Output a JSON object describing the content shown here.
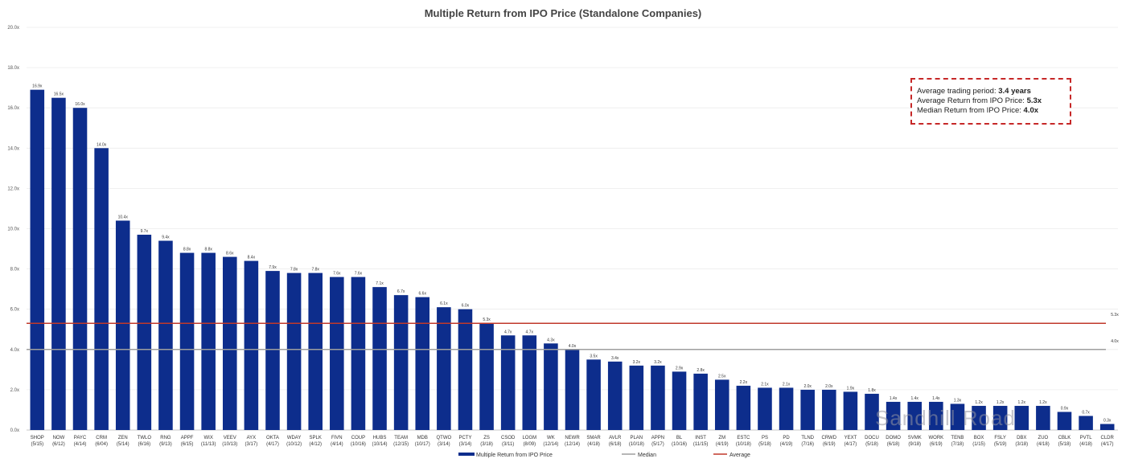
{
  "chart_data": {
    "type": "bar",
    "title": "Multiple Return from IPO Price (Standalone Companies)",
    "ylim": [
      0,
      20
    ],
    "yticks": [
      "0.0x",
      "2.0x",
      "4.0x",
      "6.0x",
      "8.0x",
      "10.0x",
      "12.0x",
      "14.0x",
      "16.0x",
      "18.0x",
      "20.0x"
    ],
    "categories": [
      {
        "ticker": "SHOP",
        "date": "(5/15)",
        "value": 16.9,
        "label": "16.9x"
      },
      {
        "ticker": "NOW",
        "date": "(6/12)",
        "value": 16.5,
        "label": "16.5x"
      },
      {
        "ticker": "PAYC",
        "date": "(4/14)",
        "value": 16.0,
        "label": "16.0x"
      },
      {
        "ticker": "CRM",
        "date": "(6/04)",
        "value": 14.0,
        "label": "14.0x"
      },
      {
        "ticker": "ZEN",
        "date": "(5/14)",
        "value": 10.4,
        "label": "10.4x"
      },
      {
        "ticker": "TWLO",
        "date": "(6/16)",
        "value": 9.7,
        "label": "9.7x"
      },
      {
        "ticker": "RNG",
        "date": "(9/13)",
        "value": 9.4,
        "label": "9.4x"
      },
      {
        "ticker": "APPF",
        "date": "(6/15)",
        "value": 8.8,
        "label": "8.8x"
      },
      {
        "ticker": "WIX",
        "date": "(11/13)",
        "value": 8.8,
        "label": "8.8x"
      },
      {
        "ticker": "VEEV",
        "date": "(10/13)",
        "value": 8.6,
        "label": "8.6x"
      },
      {
        "ticker": "AYX",
        "date": "(3/17)",
        "value": 8.4,
        "label": "8.4x"
      },
      {
        "ticker": "OKTA",
        "date": "(4/17)",
        "value": 7.9,
        "label": "7.9x"
      },
      {
        "ticker": "WDAY",
        "date": "(10/12)",
        "value": 7.8,
        "label": "7.8x"
      },
      {
        "ticker": "SPLK",
        "date": "(4/12)",
        "value": 7.8,
        "label": "7.8x"
      },
      {
        "ticker": "FIVN",
        "date": "(4/14)",
        "value": 7.6,
        "label": "7.6x"
      },
      {
        "ticker": "COUP",
        "date": "(10/16)",
        "value": 7.6,
        "label": "7.6x"
      },
      {
        "ticker": "HUBS",
        "date": "(10/14)",
        "value": 7.1,
        "label": "7.1x"
      },
      {
        "ticker": "TEAM",
        "date": "(12/15)",
        "value": 6.7,
        "label": "6.7x"
      },
      {
        "ticker": "MDB",
        "date": "(10/17)",
        "value": 6.6,
        "label": "6.6x"
      },
      {
        "ticker": "QTWO",
        "date": "(3/14)",
        "value": 6.1,
        "label": "6.1x"
      },
      {
        "ticker": "PCTY",
        "date": "(3/14)",
        "value": 6.0,
        "label": "6.0x"
      },
      {
        "ticker": "ZS",
        "date": "(3/18)",
        "value": 5.3,
        "label": "5.3x"
      },
      {
        "ticker": "CSOD",
        "date": "(3/11)",
        "value": 4.7,
        "label": "4.7x"
      },
      {
        "ticker": "LOGM",
        "date": "(8/09)",
        "value": 4.7,
        "label": "4.7x"
      },
      {
        "ticker": "WK",
        "date": "(12/14)",
        "value": 4.3,
        "label": "4.3x"
      },
      {
        "ticker": "NEWR",
        "date": "(12/14)",
        "value": 4.0,
        "label": "4.0x"
      },
      {
        "ticker": "SMAR",
        "date": "(4/18)",
        "value": 3.5,
        "label": "3.5x"
      },
      {
        "ticker": "AVLR",
        "date": "(6/18)",
        "value": 3.4,
        "label": "3.4x"
      },
      {
        "ticker": "PLAN",
        "date": "(10/18)",
        "value": 3.2,
        "label": "3.2x"
      },
      {
        "ticker": "APPN",
        "date": "(5/17)",
        "value": 3.2,
        "label": "3.2x"
      },
      {
        "ticker": "BL",
        "date": "(10/16)",
        "value": 2.9,
        "label": "2.9x"
      },
      {
        "ticker": "INST",
        "date": "(11/15)",
        "value": 2.8,
        "label": "2.8x"
      },
      {
        "ticker": "ZM",
        "date": "(4/19)",
        "value": 2.5,
        "label": "2.5x"
      },
      {
        "ticker": "ESTC",
        "date": "(10/18)",
        "value": 2.2,
        "label": "2.2x"
      },
      {
        "ticker": "PS",
        "date": "(5/18)",
        "value": 2.1,
        "label": "2.1x"
      },
      {
        "ticker": "PD",
        "date": "(4/19)",
        "value": 2.1,
        "label": "2.1x"
      },
      {
        "ticker": "TLND",
        "date": "(7/16)",
        "value": 2.0,
        "label": "2.0x"
      },
      {
        "ticker": "CRWD",
        "date": "(6/19)",
        "value": 2.0,
        "label": "2.0x"
      },
      {
        "ticker": "YEXT",
        "date": "(4/17)",
        "value": 1.9,
        "label": "1.9x"
      },
      {
        "ticker": "DOCU",
        "date": "(5/18)",
        "value": 1.8,
        "label": "1.8x"
      },
      {
        "ticker": "DOMO",
        "date": "(6/18)",
        "value": 1.4,
        "label": "1.4x"
      },
      {
        "ticker": "SVMK",
        "date": "(9/18)",
        "value": 1.4,
        "label": "1.4x"
      },
      {
        "ticker": "WORK",
        "date": "(6/19)",
        "value": 1.4,
        "label": "1.4x"
      },
      {
        "ticker": "TENB",
        "date": "(7/18)",
        "value": 1.3,
        "label": "1.3x"
      },
      {
        "ticker": "BOX",
        "date": "(1/15)",
        "value": 1.2,
        "label": "1.2x"
      },
      {
        "ticker": "FSLY",
        "date": "(5/19)",
        "value": 1.2,
        "label": "1.2x"
      },
      {
        "ticker": "DBX",
        "date": "(3/18)",
        "value": 1.2,
        "label": "1.2x"
      },
      {
        "ticker": "ZUO",
        "date": "(4/18)",
        "value": 1.2,
        "label": "1.2x"
      },
      {
        "ticker": "CBLK",
        "date": "(5/18)",
        "value": 0.9,
        "label": "0.9x"
      },
      {
        "ticker": "PVTL",
        "date": "(4/18)",
        "value": 0.7,
        "label": "0.7x"
      },
      {
        "ticker": "CLDR",
        "date": "(4/17)",
        "value": 0.3,
        "label": "0.3x"
      }
    ],
    "average": {
      "name": "Average",
      "value": 5.3,
      "label": "5.3x",
      "color": "#c0392b"
    },
    "median": {
      "name": "Median",
      "value": 4.0,
      "label": "4.0x",
      "color": "#9e9e9e"
    },
    "series_name": "Multiple Return from IPO Price",
    "bar_color": "#0d2d8c",
    "legend_position": "bottom",
    "grid": true
  },
  "stats_box": {
    "line1_prefix": "Average trading period: ",
    "line1_value": "3.4 years",
    "line2_prefix": "Average Return from IPO Price: ",
    "line2_value": "5.3x",
    "line3_prefix": "Median Return from IPO Price: ",
    "line3_value": "4.0x"
  },
  "watermark": "Sandhill Road"
}
